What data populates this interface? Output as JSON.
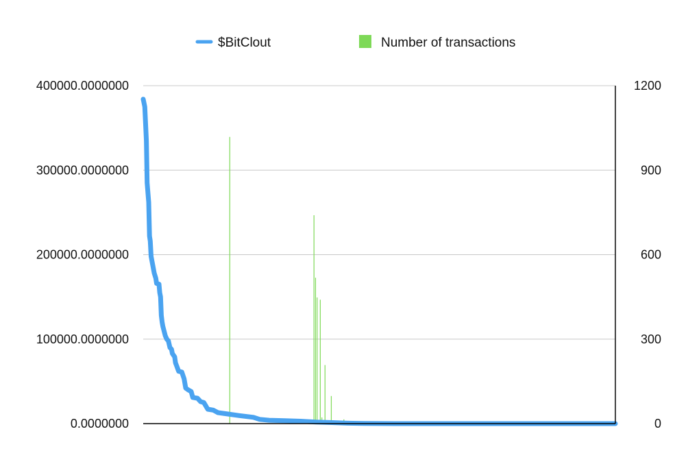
{
  "chart_data": {
    "type": "bar",
    "title": "",
    "xlabel": "",
    "ylabel": "",
    "y2label": "",
    "ylim": [
      0,
      400000
    ],
    "y2lim": [
      0,
      1200
    ],
    "yticks": [
      "0.0000000",
      "100000.0000000",
      "200000.0000000",
      "300000.0000000",
      "400000.0000000"
    ],
    "y2ticks": [
      "0",
      "300",
      "600",
      "900",
      "1200"
    ],
    "grid": true,
    "legend_position": "top",
    "x_count": 600,
    "series": [
      {
        "name": "$BitClout",
        "kind": "line",
        "axis": "left",
        "color": "#4aa3f0",
        "points": [
          [
            0,
            384000
          ],
          [
            2,
            375000
          ],
          [
            4,
            335000
          ],
          [
            5,
            285000
          ],
          [
            7,
            262000
          ],
          [
            8,
            222000
          ],
          [
            9,
            216000
          ],
          [
            10,
            198000
          ],
          [
            12,
            188000
          ],
          [
            14,
            178000
          ],
          [
            16,
            172000
          ],
          [
            17,
            166000
          ],
          [
            20,
            165000
          ],
          [
            21,
            155000
          ],
          [
            22,
            150000
          ],
          [
            23,
            128000
          ],
          [
            24,
            120000
          ],
          [
            25,
            115000
          ],
          [
            28,
            104000
          ],
          [
            30,
            100000
          ],
          [
            32,
            98000
          ],
          [
            34,
            90000
          ],
          [
            36,
            88000
          ],
          [
            37,
            83000
          ],
          [
            40,
            79000
          ],
          [
            41,
            72000
          ],
          [
            43,
            67000
          ],
          [
            45,
            62000
          ],
          [
            49,
            61000
          ],
          [
            52,
            53000
          ],
          [
            54,
            42000
          ],
          [
            57,
            40000
          ],
          [
            61,
            38000
          ],
          [
            63,
            31000
          ],
          [
            69,
            30000
          ],
          [
            73,
            26000
          ],
          [
            77,
            25000
          ],
          [
            82,
            17000
          ],
          [
            89,
            16000
          ],
          [
            95,
            13000
          ],
          [
            110,
            11000
          ],
          [
            122,
            9500
          ],
          [
            140,
            7500
          ],
          [
            148,
            5000
          ],
          [
            160,
            4000
          ],
          [
            180,
            3500
          ],
          [
            200,
            2800
          ],
          [
            220,
            1800
          ],
          [
            240,
            1200
          ],
          [
            260,
            500
          ],
          [
            280,
            200
          ],
          [
            320,
            0
          ],
          [
            600,
            0
          ]
        ]
      },
      {
        "name": "Number of transactions",
        "kind": "bar",
        "axis": "right",
        "color": "#7ed957",
        "points": [
          [
            110,
            1018
          ],
          [
            217,
            740
          ],
          [
            219,
            518
          ],
          [
            221,
            448
          ],
          [
            225,
            440
          ],
          [
            227,
            22
          ],
          [
            231,
            208
          ],
          [
            239,
            98
          ],
          [
            255,
            15
          ],
          [
            310,
            3
          ],
          [
            400,
            2
          ],
          [
            470,
            2
          ]
        ]
      }
    ]
  }
}
